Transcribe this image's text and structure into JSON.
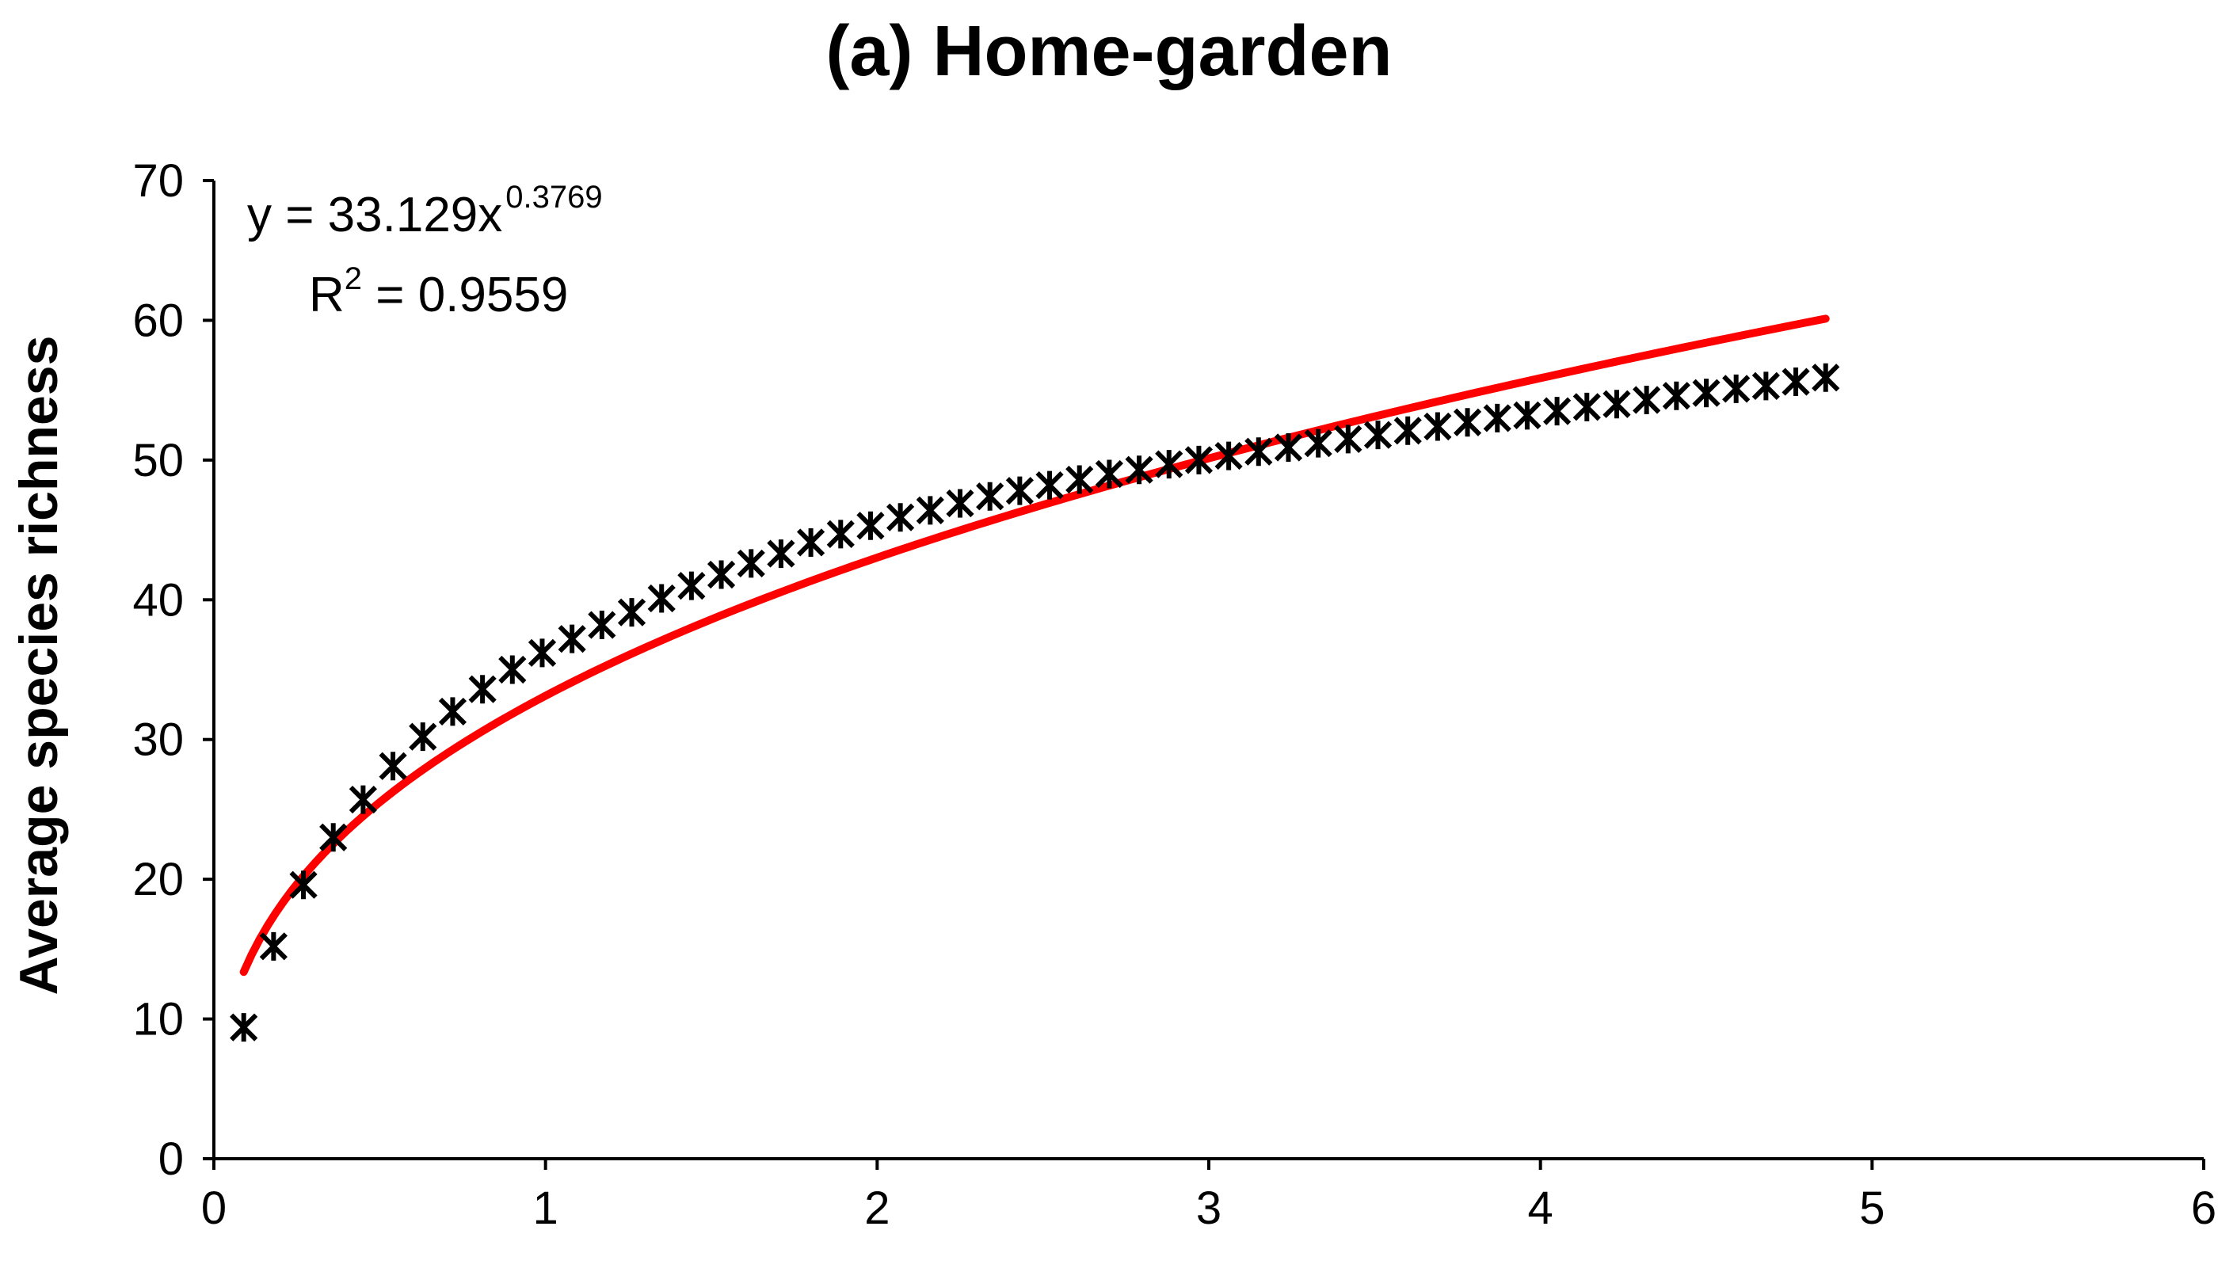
{
  "chart_data": {
    "type": "scatter",
    "title": "(a) Home-garden",
    "xlabel": "",
    "ylabel": "Average species richness",
    "xlim": [
      0,
      6
    ],
    "ylim": [
      0,
      70
    ],
    "xticks": [
      "0",
      "1",
      "2",
      "3",
      "4",
      "5",
      "6"
    ],
    "yticks": [
      "0",
      "10",
      "20",
      "30",
      "40",
      "50",
      "60",
      "70"
    ],
    "grid": false,
    "legend": "none",
    "series": [
      {
        "marker": "asterisk",
        "color": "#000000",
        "x": [
          0.09,
          0.18,
          0.27,
          0.36,
          0.45,
          0.54,
          0.63,
          0.72,
          0.81,
          0.9,
          0.99,
          1.08,
          1.17,
          1.26,
          1.35,
          1.44,
          1.53,
          1.62,
          1.71,
          1.8,
          1.89,
          1.98,
          2.07,
          2.16,
          2.25,
          2.34,
          2.43,
          2.52,
          2.61,
          2.7,
          2.79,
          2.88,
          2.97,
          3.06,
          3.15,
          3.24,
          3.33,
          3.42,
          3.51,
          3.6,
          3.69,
          3.78,
          3.87,
          3.96,
          4.05,
          4.14,
          4.23,
          4.32,
          4.41,
          4.5,
          4.59,
          4.68,
          4.77,
          4.86
        ],
        "y": [
          9.4,
          15.2,
          19.6,
          23.0,
          25.7,
          28.1,
          30.2,
          32.0,
          33.6,
          35.0,
          36.2,
          37.2,
          38.2,
          39.1,
          40.1,
          41.0,
          41.8,
          42.6,
          43.3,
          44.1,
          44.7,
          45.3,
          45.9,
          46.4,
          46.9,
          47.4,
          47.8,
          48.2,
          48.6,
          49.0,
          49.3,
          49.7,
          50.0,
          50.3,
          50.6,
          50.9,
          51.2,
          51.5,
          51.8,
          52.1,
          52.4,
          52.7,
          53.0,
          53.2,
          53.5,
          53.8,
          54.0,
          54.3,
          54.6,
          54.8,
          55.1,
          55.3,
          55.6,
          55.9
        ]
      }
    ],
    "trendline": {
      "type": "power",
      "coefficient": 33.129,
      "exponent": 0.3769,
      "x_range": [
        0.09,
        4.86
      ],
      "color": "#ff0000"
    },
    "annotation": {
      "equation_prefix": "y = 33.129x",
      "equation_exponent": "0.3769",
      "r2_prefix": "R",
      "r2_superscript": "2",
      "r2_value": " = 0.9559"
    }
  }
}
